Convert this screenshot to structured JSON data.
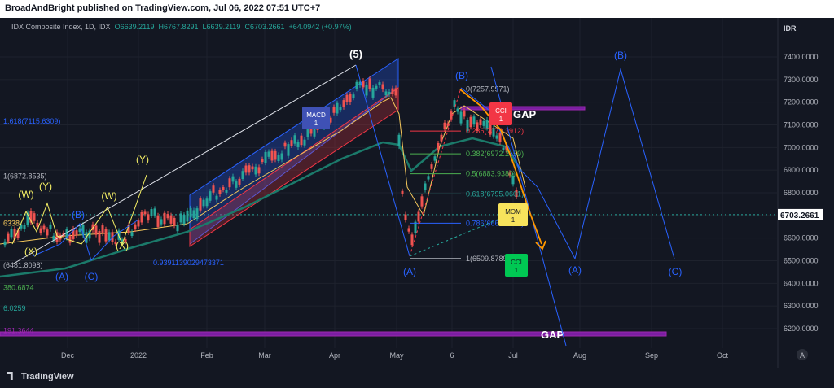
{
  "header": {
    "published": "BroadAndBright published on TradingView.com, Jul 06, 2022 07:51 UTC+7"
  },
  "symbol": {
    "name": "IDX Composite Index, 1D, IDX",
    "open": "O6639.2119",
    "high": "H6767.8291",
    "low": "L6639.2119",
    "close": "C6703.2661",
    "change": "+64.0942 (+0.97%)"
  },
  "footer": {
    "brand": "TradingView"
  },
  "chart_data": {
    "type": "candlestick",
    "currency": "IDR",
    "last_price": "6703.2661",
    "ylim": [
      6150,
      7500
    ],
    "y_ticks": [
      "7400.0000",
      "7300.0000",
      "7200.0000",
      "7100.0000",
      "7000.0000",
      "6900.0000",
      "6800.0000",
      "6700.0000",
      "6600.0000",
      "6500.0000",
      "6400.0000",
      "6300.0000",
      "6200.0000"
    ],
    "x_ticks": [
      "Dec",
      "2022",
      "Feb",
      "Mar",
      "Apr",
      "May",
      "6",
      "Jul",
      "Aug",
      "Sep",
      "Oct"
    ],
    "fibonacci": [
      {
        "label": "0(7257.9971)",
        "value": 7257.9971
      },
      {
        "label": "0.236(7072.3912)",
        "value": 7072.3912
      },
      {
        "label": "0.382(6972.2159)",
        "value": 6972.2159
      },
      {
        "label": "0.5(6883.9380)",
        "value": 6883.938
      },
      {
        "label": "0.618(6795.0601)",
        "value": 6795.0601
      },
      {
        "label": "0.786(6665.9397)",
        "value": 6665.9397
      },
      {
        "label": "1(6509.8789)",
        "value": 6509.8789
      }
    ],
    "left_fib_labels": [
      {
        "label": "1.618(7115.6309)",
        "value": 7115.6309
      },
      {
        "label": "1(6872.8535)",
        "value": 6872.8535
      },
      {
        "label": "6338",
        "value": 6665
      },
      {
        "label": "(6481.8098)",
        "value": 6480
      },
      {
        "label": "380.6874",
        "value": 6380.6874
      },
      {
        "label": "6.0259",
        "value": 6290
      },
      {
        "label": "191.3644",
        "value": 6191.3644
      }
    ],
    "regression_label": "0.9391139029473371",
    "wave_labels": {
      "yellow": [
        "(W)",
        "(Y)",
        "(X)",
        "(W)",
        "(X)",
        "(Y)"
      ],
      "blue": [
        "(B)",
        "(A)",
        "(C)",
        "(A)",
        "(B)",
        "(A)",
        "(B)",
        "(C)"
      ],
      "white": [
        "(5)"
      ]
    },
    "markers": {
      "macd": {
        "title": "MACD",
        "value": "1"
      },
      "cci_top": {
        "title": "CCI",
        "value": "1"
      },
      "cci_bottom": {
        "title": "CCI",
        "value": "1"
      },
      "mom": {
        "title": "MOM",
        "value": "1"
      }
    },
    "gap_labels": [
      "GAP",
      "GAP"
    ],
    "logo": "A",
    "colors": {
      "background": "#131722",
      "up": "#26a69a",
      "down": "#ef5350",
      "channel_blue": "#2962ff",
      "fib_red": "#f23645",
      "fib_green": "#4caf50",
      "fib_white": "#b2b5be",
      "wave_blue": "#2962ff",
      "wave_yellow": "#f7f165",
      "gap_purple": "#9c27b0",
      "ma_yellow": "#f7c95c",
      "ma_green": "#1b7a6a",
      "arrow_orange": "#ff9800",
      "last_price_bg": "#ffffff"
    }
  }
}
